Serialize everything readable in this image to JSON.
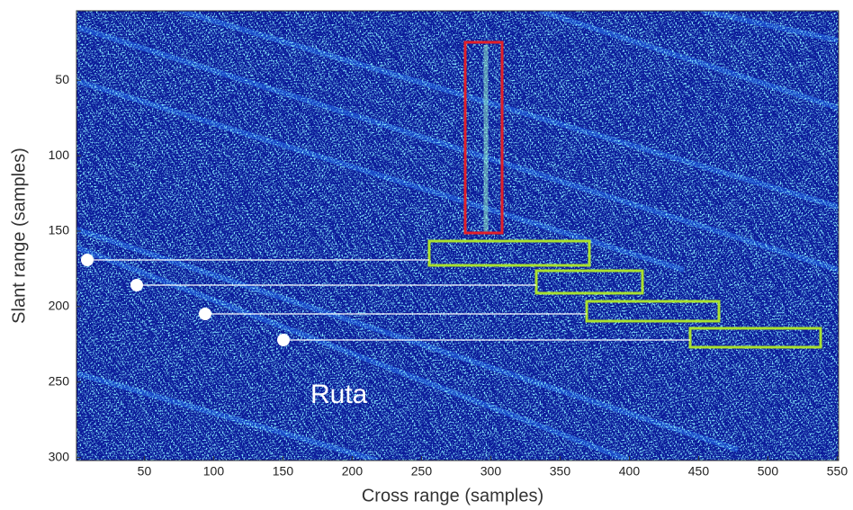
{
  "chart_data": {
    "type": "image",
    "xlabel": "Cross range (samples)",
    "ylabel": "Slant range (samples)",
    "xlim": [
      1,
      551
    ],
    "ylim": [
      4,
      302
    ],
    "y_inverted": true,
    "xticks": [
      50,
      100,
      150,
      200,
      250,
      300,
      350,
      400,
      450,
      500,
      550
    ],
    "yticks": [
      50,
      100,
      150,
      200,
      250,
      300
    ],
    "annotations": [
      "Ruta"
    ]
  }
}
